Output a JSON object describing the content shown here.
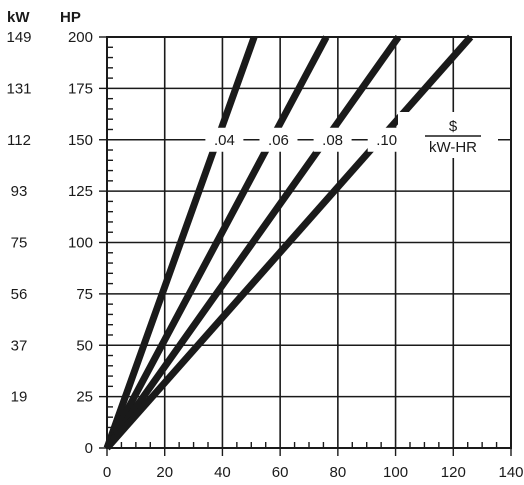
{
  "chart_data": {
    "type": "line",
    "left_axis_headers": {
      "kw": "kW",
      "hp": "HP"
    },
    "x": {
      "range": [
        0,
        140
      ],
      "ticks": [
        "0",
        "20",
        "40",
        "60",
        "80",
        "100",
        "120",
        "140"
      ],
      "tick_values": [
        0,
        20,
        40,
        60,
        80,
        100,
        120,
        140
      ],
      "minor_step": 5
    },
    "y": {
      "range": [
        0,
        200
      ],
      "hp_ticks": [
        "0",
        "25",
        "50",
        "75",
        "100",
        "125",
        "150",
        "175",
        "200"
      ],
      "hp_tick_values": [
        0,
        25,
        50,
        75,
        100,
        125,
        150,
        175,
        200
      ],
      "kw_ticks": [
        "0",
        "19",
        "37",
        "56",
        "75",
        "93",
        "112",
        "131",
        "149"
      ],
      "minor_step": 5
    },
    "grid": true,
    "series": [
      {
        "name": ".04",
        "x": [
          0,
          51
        ],
        "y": [
          0,
          200
        ]
      },
      {
        "name": ".06",
        "x": [
          0,
          76
        ],
        "y": [
          0,
          200
        ]
      },
      {
        "name": ".08",
        "x": [
          0,
          101
        ],
        "y": [
          0,
          200
        ]
      },
      {
        "name": ".10",
        "x": [
          0,
          126
        ],
        "y": [
          0,
          200
        ]
      }
    ],
    "unit_label": {
      "numerator": "$",
      "denominator": "kW-HR"
    }
  },
  "colors": {
    "line": "#1a1a1a",
    "grid": "#1a1a1a",
    "background": "#ffffff"
  }
}
